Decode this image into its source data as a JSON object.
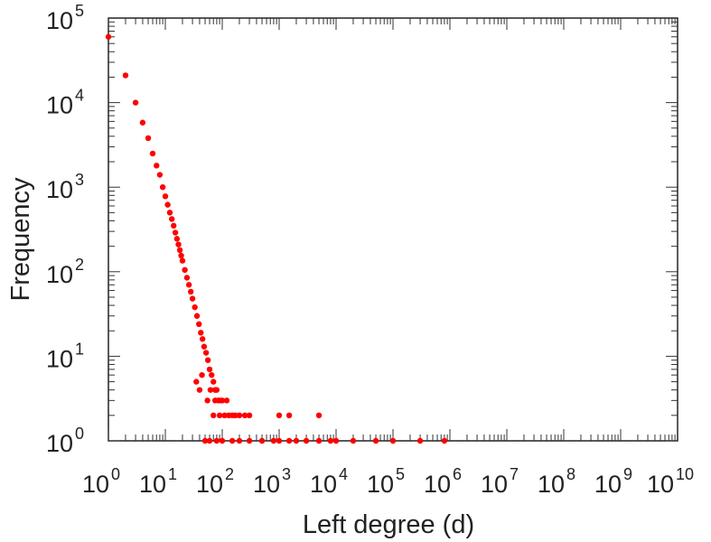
{
  "chart_data": {
    "type": "scatter",
    "title": "",
    "xlabel": "Left degree (d)",
    "ylabel": "Frequency",
    "x_scale": "log",
    "y_scale": "log",
    "xlim": [
      1,
      10000000000
    ],
    "ylim": [
      1,
      100000
    ],
    "grid": false,
    "legend": "none",
    "marker_color": "#ff0000",
    "x_tick_labels": [
      {
        "base": "10",
        "exp": "0"
      },
      {
        "base": "10",
        "exp": "1"
      },
      {
        "base": "10",
        "exp": "2"
      },
      {
        "base": "10",
        "exp": "3"
      },
      {
        "base": "10",
        "exp": "4"
      },
      {
        "base": "10",
        "exp": "5"
      },
      {
        "base": "10",
        "exp": "6"
      },
      {
        "base": "10",
        "exp": "7"
      },
      {
        "base": "10",
        "exp": "8"
      },
      {
        "base": "10",
        "exp": "9"
      },
      {
        "base": "10",
        "exp": "10"
      }
    ],
    "y_tick_labels": [
      {
        "base": "10",
        "exp": "0"
      },
      {
        "base": "10",
        "exp": "1"
      },
      {
        "base": "10",
        "exp": "2"
      },
      {
        "base": "10",
        "exp": "3"
      },
      {
        "base": "10",
        "exp": "4"
      },
      {
        "base": "10",
        "exp": "5"
      }
    ],
    "points": [
      [
        1,
        60000
      ],
      [
        2,
        21000
      ],
      [
        3,
        10000
      ],
      [
        4,
        5800
      ],
      [
        5,
        3800
      ],
      [
        6,
        2500
      ],
      [
        7,
        1800
      ],
      [
        8,
        1400
      ],
      [
        9,
        1000
      ],
      [
        10,
        780
      ],
      [
        11,
        620
      ],
      [
        12,
        500
      ],
      [
        13,
        420
      ],
      [
        14,
        350
      ],
      [
        15,
        290
      ],
      [
        16,
        245
      ],
      [
        17,
        210
      ],
      [
        18,
        180
      ],
      [
        19,
        155
      ],
      [
        20,
        135
      ],
      [
        22,
        105
      ],
      [
        24,
        85
      ],
      [
        26,
        70
      ],
      [
        28,
        58
      ],
      [
        30,
        48
      ],
      [
        33,
        38
      ],
      [
        36,
        30
      ],
      [
        39,
        24
      ],
      [
        42,
        19
      ],
      [
        45,
        16
      ],
      [
        48,
        13
      ],
      [
        52,
        11
      ],
      [
        56,
        9
      ],
      [
        60,
        7
      ],
      [
        65,
        6
      ],
      [
        70,
        5
      ],
      [
        75,
        4
      ],
      [
        80,
        4
      ],
      [
        85,
        3
      ],
      [
        90,
        3
      ],
      [
        100,
        3
      ],
      [
        110,
        2
      ],
      [
        120,
        3
      ],
      [
        130,
        2
      ],
      [
        150,
        2
      ],
      [
        170,
        2
      ],
      [
        200,
        2
      ],
      [
        250,
        2
      ],
      [
        300,
        2
      ],
      [
        50,
        1
      ],
      [
        60,
        1
      ],
      [
        80,
        1
      ],
      [
        100,
        1
      ],
      [
        150,
        1
      ],
      [
        200,
        1
      ],
      [
        300,
        1
      ],
      [
        500,
        1
      ],
      [
        800,
        1
      ],
      [
        1000,
        1
      ],
      [
        1500,
        1
      ],
      [
        2000,
        1
      ],
      [
        3000,
        1
      ],
      [
        5000,
        1
      ],
      [
        8000,
        1
      ],
      [
        10000,
        1
      ],
      [
        20000,
        1
      ],
      [
        50000,
        1
      ],
      [
        100000,
        1
      ],
      [
        300000,
        1
      ],
      [
        800000,
        1
      ],
      [
        40,
        4
      ],
      [
        55,
        3
      ],
      [
        70,
        2
      ],
      [
        90,
        2
      ],
      [
        35,
        5
      ],
      [
        44,
        6
      ],
      [
        62,
        4
      ],
      [
        75,
        3
      ],
      [
        1000,
        2
      ],
      [
        1500,
        2
      ],
      [
        5000,
        2
      ]
    ]
  }
}
